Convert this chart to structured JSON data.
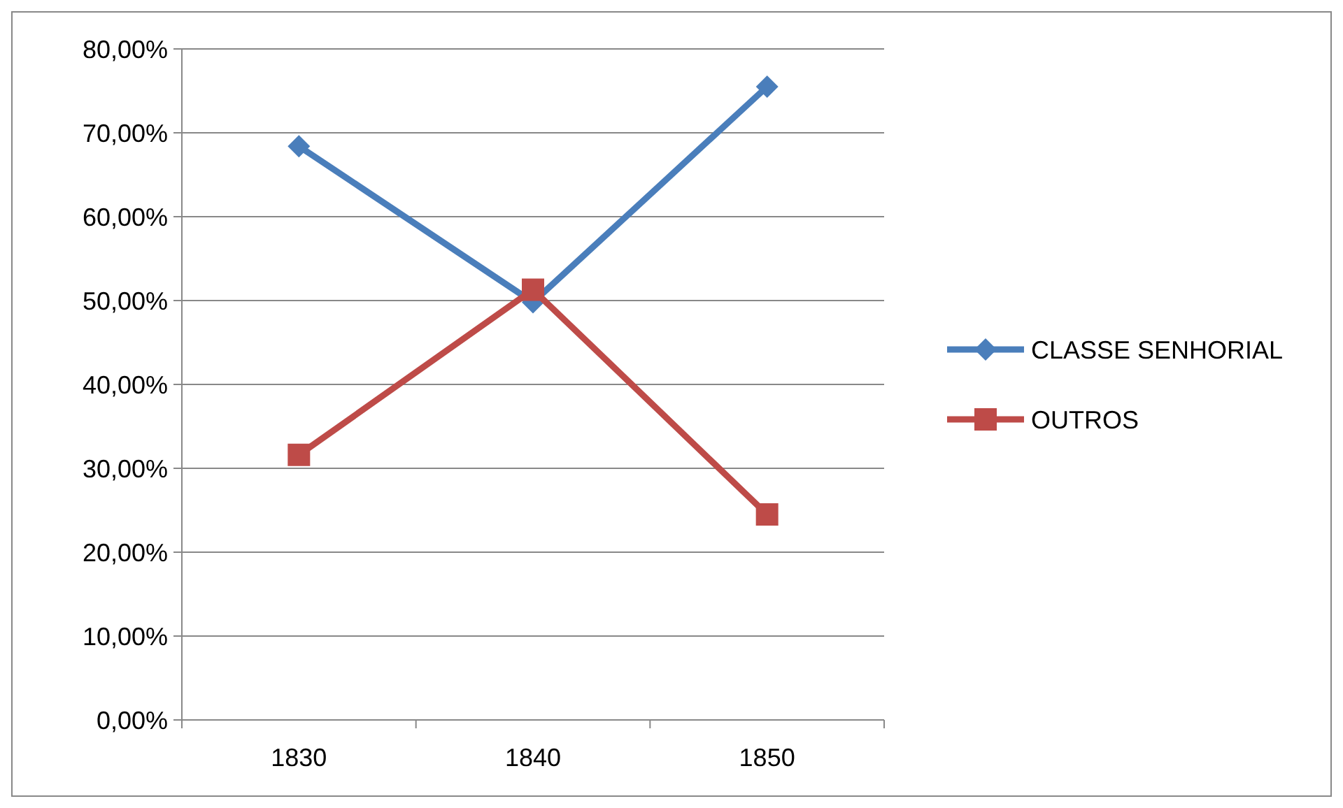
{
  "chart_data": {
    "type": "line",
    "categories": [
      "1830",
      "1840",
      "1850"
    ],
    "series": [
      {
        "name": "CLASSE SENHORIAL",
        "color": "#4a7ebb",
        "values": [
          68.4,
          49.8,
          75.5
        ],
        "marker": "diamond"
      },
      {
        "name": "OUTROS",
        "color": "#be4b48",
        "values": [
          31.6,
          51.3,
          24.5
        ],
        "marker": "square"
      }
    ],
    "ylim": [
      0,
      80
    ],
    "yticks": [
      {
        "value": 0,
        "label": "0,00%"
      },
      {
        "value": 10,
        "label": "10,00%"
      },
      {
        "value": 20,
        "label": "20,00%"
      },
      {
        "value": 30,
        "label": "30,00%"
      },
      {
        "value": 40,
        "label": "40,00%"
      },
      {
        "value": 50,
        "label": "50,00%"
      },
      {
        "value": 60,
        "label": "60,00%"
      },
      {
        "value": 70,
        "label": "70,00%"
      },
      {
        "value": 80,
        "label": "80,00%"
      }
    ],
    "grid": "y",
    "legend": "right",
    "line_style": "solid"
  }
}
